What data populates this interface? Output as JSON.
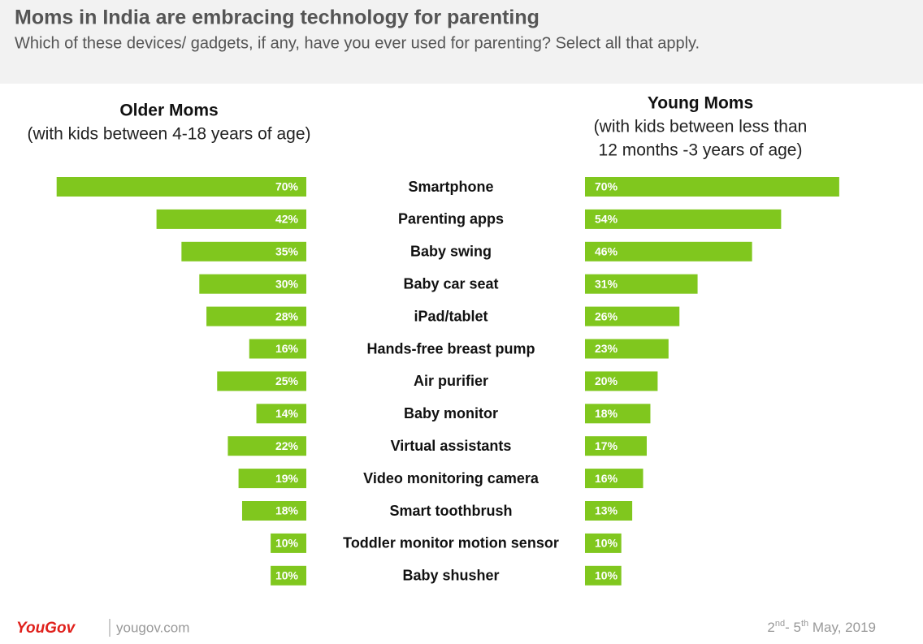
{
  "chart_data": {
    "type": "bar",
    "title": "Moms in India are embracing technology for parenting",
    "subtitle": "Which of these devices/ gadgets, if any, have you ever used for parenting? Select all that apply.",
    "categories": [
      "Smartphone",
      "Parenting apps",
      "Baby swing",
      "Baby car seat",
      "iPad/tablet",
      "Hands-free breast pump",
      "Air purifier",
      "Baby monitor",
      "Virtual assistants",
      "Video monitoring camera",
      "Smart toothbrush",
      "Toddler monitor motion sensor",
      "Baby shusher"
    ],
    "series": [
      {
        "name": "Older Moms",
        "description": [
          "(with kids between 4-18 years of age)"
        ],
        "color": "#80c71e",
        "values": [
          70,
          42,
          35,
          30,
          28,
          16,
          25,
          14,
          22,
          19,
          18,
          10,
          10
        ],
        "value_labels": [
          "70%",
          "42%",
          "35%",
          "30%",
          "28%",
          "16%",
          "25%",
          "14%",
          "22%",
          "19%",
          "18%",
          "10%",
          "10%"
        ]
      },
      {
        "name": "Young Moms",
        "description": [
          "(with kids between less than",
          "12 months -3 years of age)"
        ],
        "color": "#80c71e",
        "values": [
          70,
          54,
          46,
          31,
          26,
          23,
          20,
          18,
          17,
          16,
          13,
          10,
          10
        ],
        "value_labels": [
          "70%",
          "54%",
          "46%",
          "31%",
          "26%",
          "23%",
          "20%",
          "18%",
          "17%",
          "16%",
          "13%",
          "10%",
          "10%"
        ]
      }
    ],
    "footer": {
      "brand": "YouGov",
      "site": "yougov.com",
      "date": [
        "2",
        "nd",
        "- 5",
        "th",
        " May,  2019"
      ]
    }
  }
}
